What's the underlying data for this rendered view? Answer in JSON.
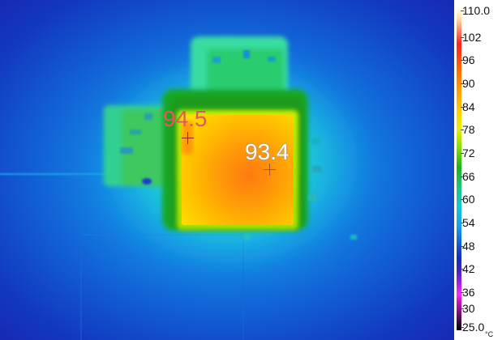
{
  "thermal_image": {
    "spots": [
      {
        "label": "94.5",
        "color": "#e4585a"
      },
      {
        "label": "93.4",
        "color": "#ffffff"
      }
    ]
  },
  "colorbar": {
    "max_label": "110.0",
    "min_label": "25.0",
    "ticks": [
      "102",
      "96",
      "90",
      "84",
      "78",
      "72",
      "66",
      "60",
      "54",
      "48",
      "42",
      "36",
      "30"
    ],
    "unit": "°C",
    "palette": "rainbow-iron"
  }
}
